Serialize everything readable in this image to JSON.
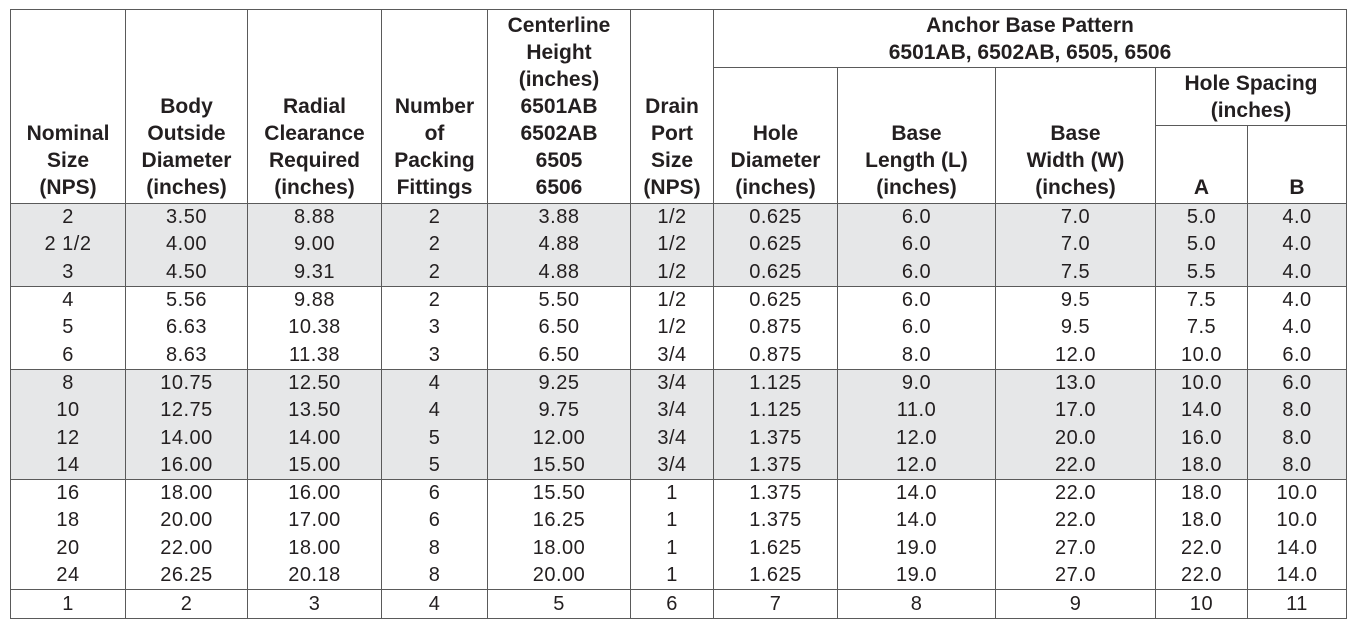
{
  "headers": {
    "nominal_size": [
      "Nominal",
      "Size",
      "(NPS)"
    ],
    "body_od": [
      "Body",
      "Outside",
      "Diameter",
      "(inches)"
    ],
    "radial_clearance": [
      "Radial",
      "Clearance",
      "Required",
      "(inches)"
    ],
    "packing": [
      "Number",
      "of",
      "Packing",
      "Fittings"
    ],
    "centerline": [
      "Centerline",
      "Height",
      "(inches)",
      "6501AB",
      "6502AB",
      "6505",
      "6506"
    ],
    "drain": [
      "Drain",
      "Port",
      "Size",
      "(NPS)"
    ],
    "anchor_group": [
      "Anchor Base Pattern",
      "6501AB, 6502AB, 6505, 6506"
    ],
    "hole_diameter": [
      "Hole",
      "Diameter",
      "(inches)"
    ],
    "base_length": [
      "Base",
      "Length (L)",
      "(inches)"
    ],
    "base_width": [
      "Base",
      "Width (W)",
      "(inches)"
    ],
    "hole_spacing": [
      "Hole Spacing",
      "(inches)"
    ],
    "col_a": "A",
    "col_b": "B"
  },
  "rows": [
    [
      "2",
      "3.50",
      "8.88",
      "2",
      "3.88",
      "1/2",
      "0.625",
      "6.0",
      "7.0",
      "5.0",
      "4.0"
    ],
    [
      "2 1/2",
      "4.00",
      "9.00",
      "2",
      "4.88",
      "1/2",
      "0.625",
      "6.0",
      "7.0",
      "5.0",
      "4.0"
    ],
    [
      "3",
      "4.50",
      "9.31",
      "2",
      "4.88",
      "1/2",
      "0.625",
      "6.0",
      "7.5",
      "5.5",
      "4.0"
    ],
    [
      "4",
      "5.56",
      "9.88",
      "2",
      "5.50",
      "1/2",
      "0.625",
      "6.0",
      "9.5",
      "7.5",
      "4.0"
    ],
    [
      "5",
      "6.63",
      "10.38",
      "3",
      "6.50",
      "1/2",
      "0.875",
      "6.0",
      "9.5",
      "7.5",
      "4.0"
    ],
    [
      "6",
      "8.63",
      "11.38",
      "3",
      "6.50",
      "3/4",
      "0.875",
      "8.0",
      "12.0",
      "10.0",
      "6.0"
    ],
    [
      "8",
      "10.75",
      "12.50",
      "4",
      "9.25",
      "3/4",
      "1.125",
      "9.0",
      "13.0",
      "10.0",
      "6.0"
    ],
    [
      "10",
      "12.75",
      "13.50",
      "4",
      "9.75",
      "3/4",
      "1.125",
      "11.0",
      "17.0",
      "14.0",
      "8.0"
    ],
    [
      "12",
      "14.00",
      "14.00",
      "5",
      "12.00",
      "3/4",
      "1.375",
      "12.0",
      "20.0",
      "16.0",
      "8.0"
    ],
    [
      "14",
      "16.00",
      "15.00",
      "5",
      "15.50",
      "3/4",
      "1.375",
      "12.0",
      "22.0",
      "18.0",
      "8.0"
    ],
    [
      "16",
      "18.00",
      "16.00",
      "6",
      "15.50",
      "1",
      "1.375",
      "14.0",
      "22.0",
      "18.0",
      "10.0"
    ],
    [
      "18",
      "20.00",
      "17.00",
      "6",
      "16.25",
      "1",
      "1.375",
      "14.0",
      "22.0",
      "18.0",
      "10.0"
    ],
    [
      "20",
      "22.00",
      "18.00",
      "8",
      "18.00",
      "1",
      "1.625",
      "19.0",
      "27.0",
      "22.0",
      "14.0"
    ],
    [
      "24",
      "26.25",
      "20.18",
      "8",
      "20.00",
      "1",
      "1.625",
      "19.0",
      "27.0",
      "22.0",
      "14.0"
    ]
  ],
  "column_numbers": [
    "1",
    "2",
    "3",
    "4",
    "5",
    "6",
    "7",
    "8",
    "9",
    "10",
    "11"
  ]
}
